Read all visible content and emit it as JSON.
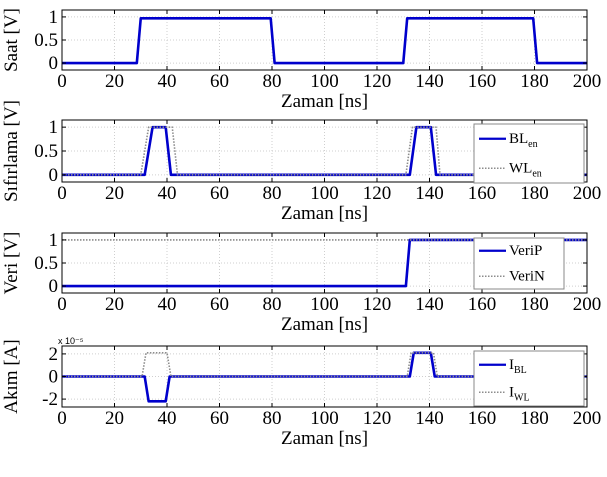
{
  "chart_data": [
    {
      "type": "line",
      "ylabel": "Saat [V]",
      "xlabel": "Zaman [ns]",
      "xlim": [
        0,
        200
      ],
      "ylim": [
        -0.15,
        1.15
      ],
      "xticks": [
        0,
        20,
        40,
        60,
        80,
        100,
        120,
        140,
        160,
        180,
        200
      ],
      "xtick_labels": [
        "0",
        "20",
        "40",
        "60",
        "80",
        "100",
        "120",
        "140",
        "160",
        "180",
        "200"
      ],
      "yticks": [
        0,
        0.5,
        1
      ],
      "ytick_labels": [
        "0",
        "0.5",
        "1"
      ],
      "grid": true,
      "series": [
        {
          "style": "solid",
          "color": "#0000cc",
          "x": [
            0,
            28.5,
            30,
            79.5,
            81,
            130,
            131.5,
            179.5,
            181,
            200
          ],
          "y": [
            0,
            0,
            0.97,
            0.97,
            0,
            0,
            0.97,
            0.97,
            0,
            0
          ]
        }
      ]
    },
    {
      "type": "line",
      "ylabel": "Sıfırlama [V]",
      "xlabel": "Zaman [ns]",
      "xlim": [
        0,
        200
      ],
      "ylim": [
        -0.15,
        1.15
      ],
      "xticks": [
        0,
        20,
        40,
        60,
        80,
        100,
        120,
        140,
        160,
        180,
        200
      ],
      "xtick_labels": [
        "0",
        "20",
        "40",
        "60",
        "80",
        "100",
        "120",
        "140",
        "160",
        "180",
        "200"
      ],
      "yticks": [
        0,
        0.5,
        1
      ],
      "ytick_labels": [
        "0",
        "0.5",
        "1"
      ],
      "grid": true,
      "legend": {
        "placement": "right",
        "entries": [
          {
            "main": "BL",
            "sub": "en",
            "style": "solid"
          },
          {
            "main": "WL",
            "sub": "en",
            "style": "dotted"
          }
        ]
      },
      "series": [
        {
          "name": "BLen",
          "style": "solid",
          "color": "#0000cc",
          "x": [
            0,
            31.5,
            34.5,
            39.5,
            41.5,
            132.5,
            135,
            140.5,
            142.5,
            200
          ],
          "y": [
            0,
            0,
            1,
            1,
            0,
            0,
            1,
            1,
            0,
            0
          ]
        },
        {
          "name": "WLen",
          "style": "dotted",
          "color": "#8c8c8c",
          "x": [
            0,
            30,
            33,
            42,
            44,
            131,
            133.5,
            142.5,
            144,
            200
          ],
          "y": [
            0,
            0,
            1,
            1,
            0,
            0,
            1,
            1,
            0,
            0
          ]
        }
      ]
    },
    {
      "type": "line",
      "ylabel": "Veri [V]",
      "xlabel": "Zaman [ns]",
      "xlim": [
        0,
        200
      ],
      "ylim": [
        -0.15,
        1.15
      ],
      "xticks": [
        0,
        20,
        40,
        60,
        80,
        100,
        120,
        140,
        160,
        180,
        200
      ],
      "xtick_labels": [
        "0",
        "20",
        "40",
        "60",
        "80",
        "100",
        "120",
        "140",
        "160",
        "180",
        "200"
      ],
      "yticks": [
        0,
        0.5,
        1
      ],
      "ytick_labels": [
        "0",
        "0.5",
        "1"
      ],
      "grid": true,
      "legend": {
        "placement": "right",
        "entries": [
          {
            "main": "VeriP",
            "sub": "",
            "style": "solid"
          },
          {
            "main": "VeriN",
            "sub": "",
            "style": "dotted"
          }
        ]
      },
      "series": [
        {
          "name": "VeriP",
          "style": "solid",
          "color": "#0000cc",
          "x": [
            0,
            131,
            132.5,
            200
          ],
          "y": [
            0,
            0,
            1,
            1
          ]
        },
        {
          "name": "VeriN",
          "style": "dotted",
          "color": "#8c8c8c",
          "x": [
            0,
            200
          ],
          "y": [
            1,
            1
          ]
        }
      ]
    },
    {
      "type": "line",
      "ylabel": "Akım [A]",
      "xlabel": "Zaman [ns]",
      "exponent_label": "x 10⁻⁵",
      "xlim": [
        0,
        200
      ],
      "ylim": [
        -2.7,
        2.7
      ],
      "xticks": [
        0,
        20,
        40,
        60,
        80,
        100,
        120,
        140,
        160,
        180,
        200
      ],
      "xtick_labels": [
        "0",
        "20",
        "40",
        "60",
        "80",
        "100",
        "120",
        "140",
        "160",
        "180",
        "200"
      ],
      "yticks": [
        -2,
        0,
        2
      ],
      "ytick_labels": [
        "-2",
        "0",
        "2"
      ],
      "grid": true,
      "legend": {
        "placement": "right",
        "entries": [
          {
            "main": "I",
            "sub": "BL",
            "style": "solid"
          },
          {
            "main": "I",
            "sub": "WL",
            "style": "dotted"
          }
        ]
      },
      "series": [
        {
          "name": "IBL",
          "style": "solid",
          "color": "#0000cc",
          "x": [
            0,
            31.5,
            33,
            39.5,
            41,
            132.5,
            134,
            140.5,
            142,
            200
          ],
          "y": [
            0,
            0,
            -2.2,
            -2.2,
            0,
            0,
            2.1,
            2.1,
            0,
            0
          ]
        },
        {
          "name": "IWL",
          "style": "dotted",
          "color": "#8c8c8c",
          "x": [
            0,
            30.5,
            32,
            40,
            41.5,
            131.5,
            133,
            141.5,
            143,
            200
          ],
          "y": [
            0,
            0,
            2.1,
            2.1,
            0,
            0,
            2.1,
            2.1,
            0,
            0
          ]
        }
      ]
    }
  ]
}
